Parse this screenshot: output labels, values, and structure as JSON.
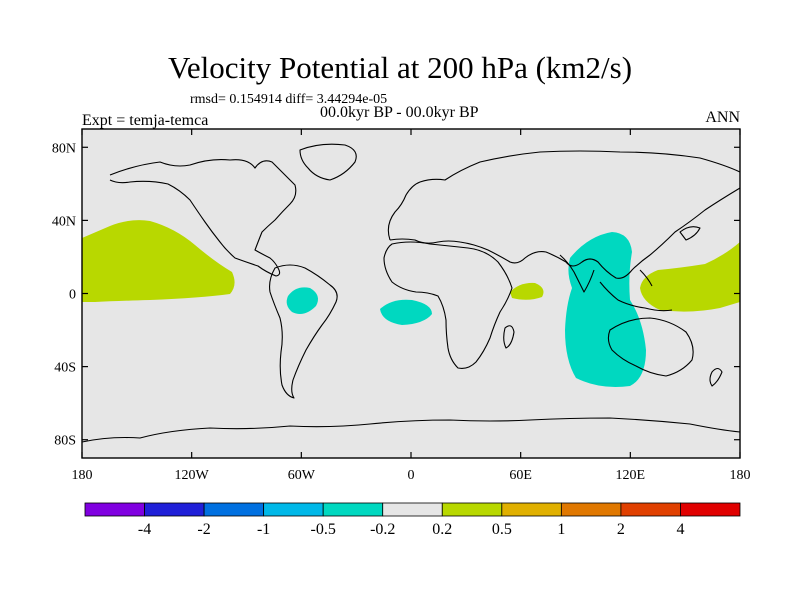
{
  "title": "Velocity Potential at 200 hPa (km2/s)",
  "stats": "rmsd= 0.154914 diff= 3.44294e-05",
  "expt": "Expt = temja-temca",
  "period": "00.0kyr BP - 00.0kyr BP",
  "season": "ANN",
  "lat_ticks": [
    {
      "value": 80,
      "label": "80N"
    },
    {
      "value": 40,
      "label": "40N"
    },
    {
      "value": 0,
      "label": "0"
    },
    {
      "value": -40,
      "label": "40S"
    },
    {
      "value": -80,
      "label": "80S"
    }
  ],
  "lon_ticks": [
    {
      "value": -180,
      "label": "180"
    },
    {
      "value": -120,
      "label": "120W"
    },
    {
      "value": -60,
      "label": "60W"
    },
    {
      "value": 0,
      "label": "0"
    },
    {
      "value": 60,
      "label": "60E"
    },
    {
      "value": 120,
      "label": "120E"
    },
    {
      "value": 180,
      "label": "180"
    }
  ],
  "colorbar": {
    "colors": [
      "#8000e0",
      "#2020d8",
      "#0070e0",
      "#00b8e8",
      "#00d8c0",
      "#e6e6e6",
      "#b8d800",
      "#e0b000",
      "#e07800",
      "#e04000",
      "#e00000"
    ],
    "labels": [
      "-4",
      "-2",
      "-1",
      "-0.5",
      "-0.2",
      "0.2",
      "0.5",
      "1",
      "2",
      "4"
    ]
  },
  "colors": {
    "background": "#e6e6e6",
    "positive": "#b8d800",
    "negative": "#00d8c0"
  }
}
